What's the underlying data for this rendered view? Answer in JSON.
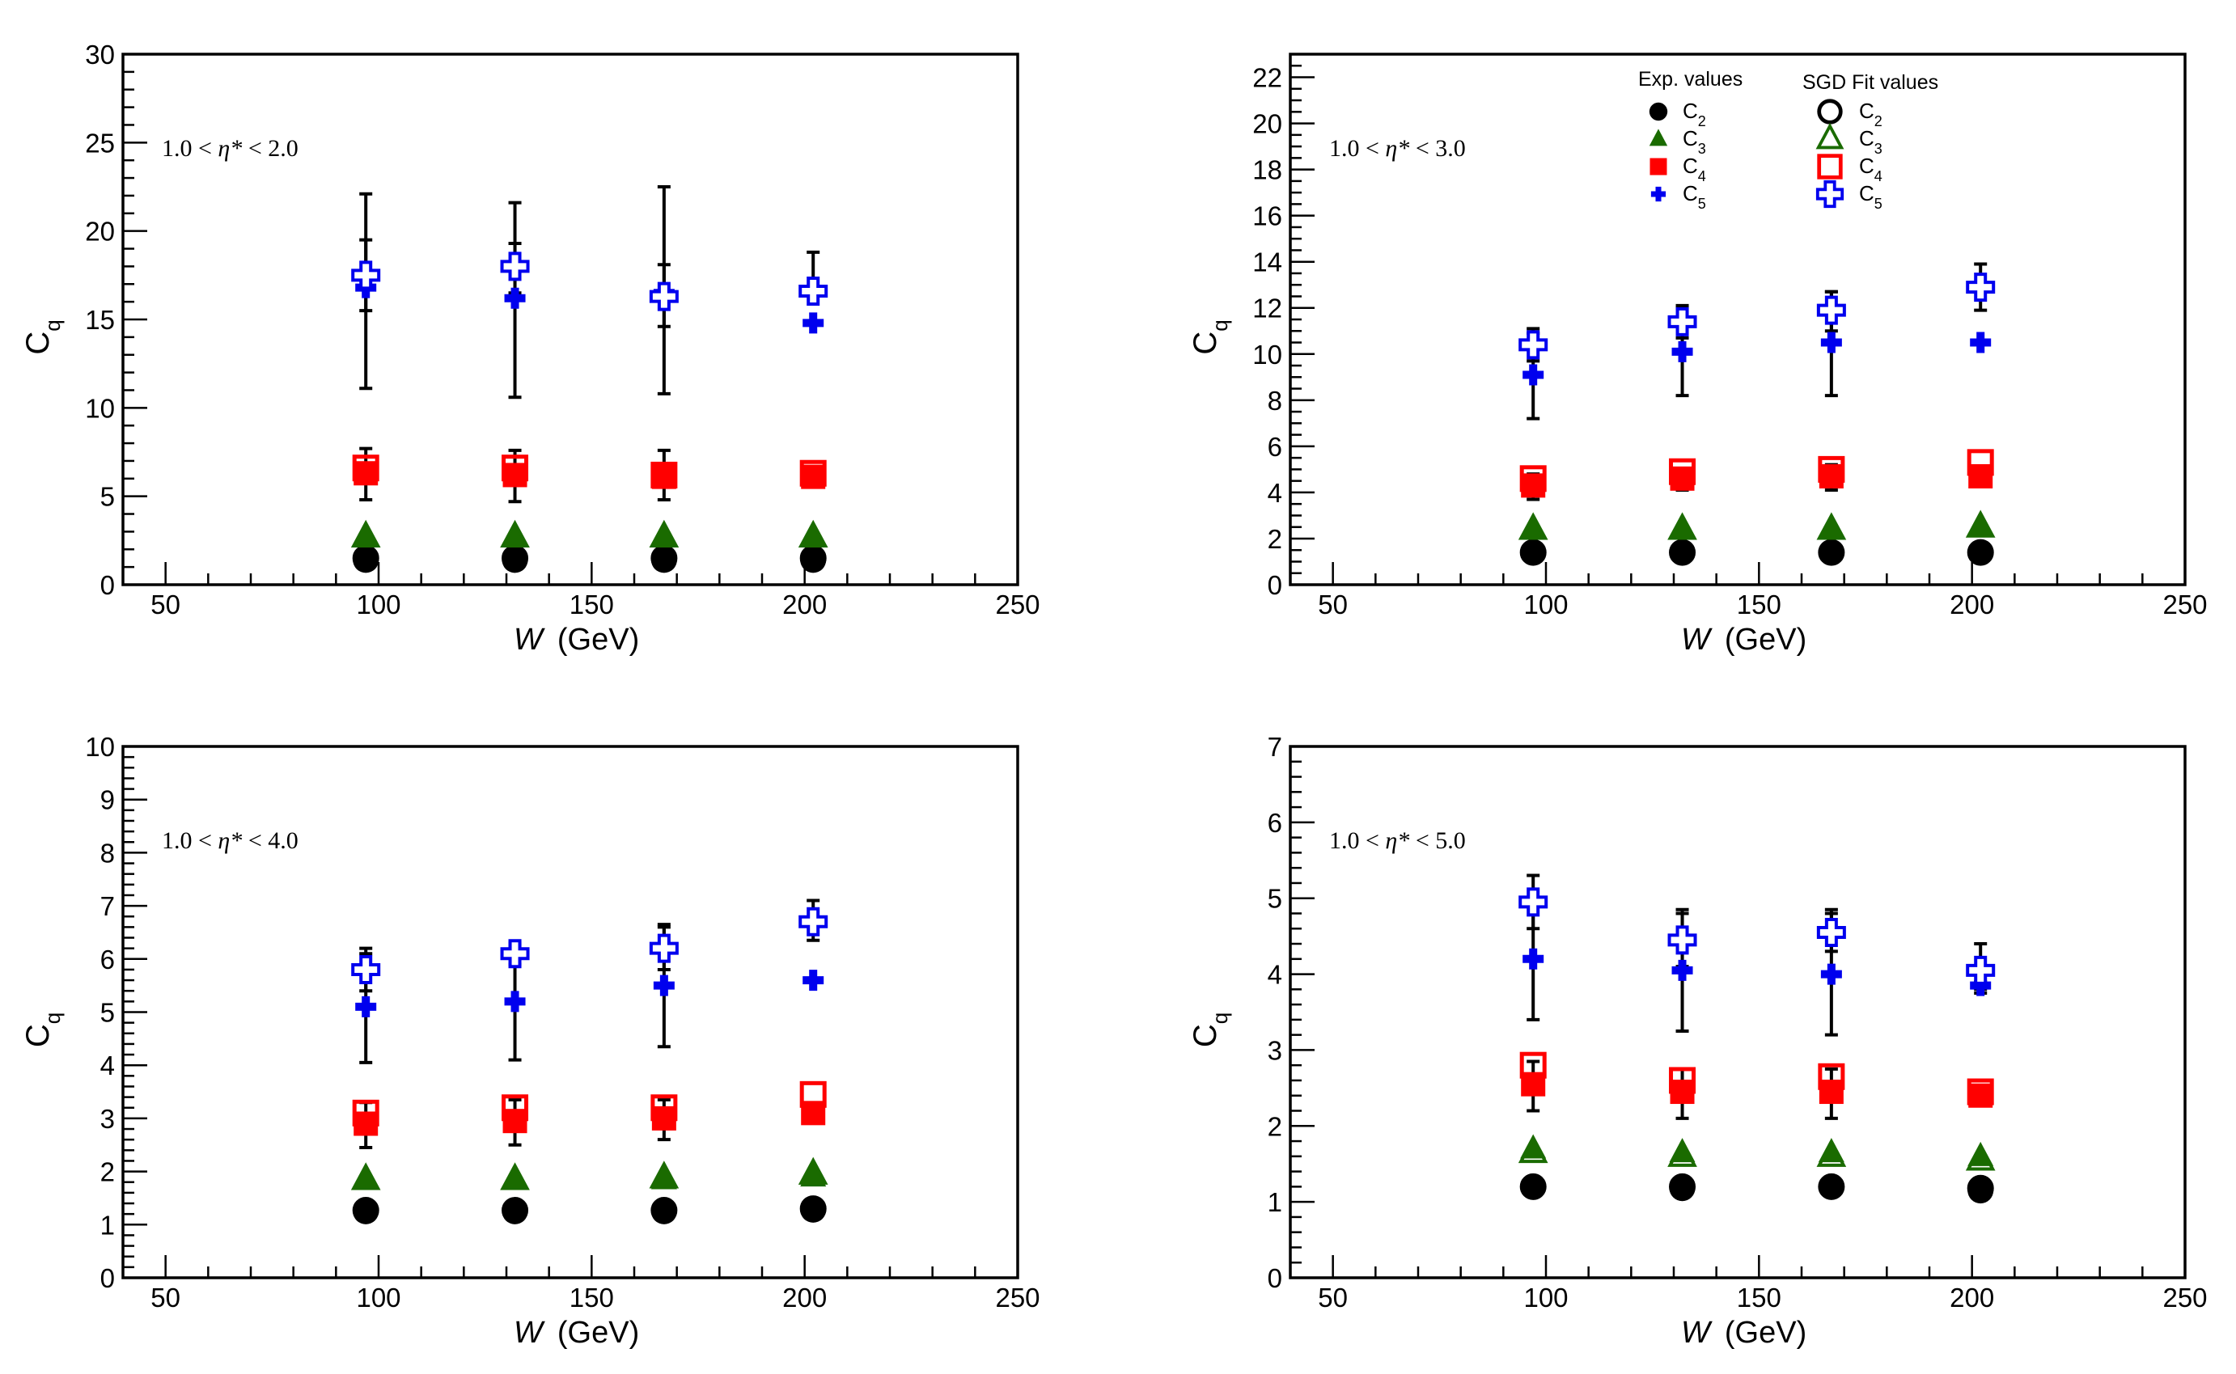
{
  "chart_data": [
    {
      "type": "scatter",
      "panel": "top-left",
      "range_label": "1.0 < η* < 2.0",
      "range_prefix": "1.0 < ",
      "range_var": "η*",
      "range_suffix": " < 2.0",
      "xlabel_var": "W",
      "xlabel_unit": "(GeV)",
      "ylabel_main": "C",
      "ylabel_sub": "q",
      "xlim": [
        40,
        250
      ],
      "ylim": [
        0,
        30
      ],
      "xticks": [
        50,
        100,
        150,
        200,
        250
      ],
      "xtick_labels": [
        "50",
        "100",
        "150",
        "200",
        "250"
      ],
      "yticks": [
        0,
        5,
        10,
        15,
        20,
        25,
        30
      ],
      "ytick_labels": [
        "0",
        "5",
        "10",
        "15",
        "20",
        "25",
        "30"
      ],
      "x_minor_step": 10,
      "y_minor_step": 1,
      "x": [
        97,
        132,
        167,
        202
      ],
      "series": [
        {
          "name": "C2 exp",
          "marker": "filled-circle",
          "color": "#000000",
          "values": [
            1.4,
            1.4,
            1.4,
            1.4
          ],
          "err": [
            [
              0.2,
              0.2
            ],
            [
              0.2,
              0.2
            ],
            [
              0.2,
              0.2
            ],
            [
              0.2,
              0.2
            ]
          ]
        },
        {
          "name": "C2 fit",
          "marker": "open-circle",
          "color": "#000000",
          "values": [
            1.5,
            1.5,
            1.5,
            1.5
          ]
        },
        {
          "name": "C3 exp",
          "marker": "filled-triangle",
          "color": "#1a6b00",
          "values": [
            2.7,
            2.7,
            2.7,
            2.7
          ]
        },
        {
          "name": "C3 fit",
          "marker": "open-triangle",
          "color": "#1a6b00",
          "values": [
            2.7,
            2.7,
            2.7,
            2.7
          ]
        },
        {
          "name": "C4 exp",
          "marker": "filled-square",
          "color": "#ff0000",
          "values": [
            6.3,
            6.2,
            6.1,
            6.1
          ],
          "err": [
            [
              1.5,
              1.4
            ],
            [
              1.5,
              1.4
            ],
            [
              1.3,
              1.5
            ],
            [
              0.5,
              0.5
            ]
          ]
        },
        {
          "name": "C4 fit",
          "marker": "open-square",
          "color": "#ff0000",
          "values": [
            6.6,
            6.6,
            6.2,
            6.3
          ]
        },
        {
          "name": "C5 exp",
          "marker": "filled-cross",
          "color": "#0000ee",
          "values": [
            16.8,
            16.2,
            16.5,
            14.8
          ],
          "err": [
            [
              5.7,
              5.3
            ],
            [
              5.6,
              5.4
            ],
            [
              5.7,
              6.0
            ],
            [
              0.1,
              0.1
            ]
          ]
        },
        {
          "name": "C5 fit",
          "marker": "open-cross",
          "color": "#0000ee",
          "values": [
            17.5,
            18.0,
            16.3,
            16.6
          ],
          "err": [
            [
              2.0,
              2.0
            ],
            [
              1.5,
              1.3
            ],
            [
              1.7,
              1.8
            ],
            [
              0.1,
              2.2
            ]
          ]
        }
      ]
    },
    {
      "type": "scatter",
      "panel": "top-right",
      "range_label": "1.0 < η* < 3.0",
      "range_prefix": "1.0 < ",
      "range_var": "η*",
      "range_suffix": " < 3.0",
      "xlabel_var": "W",
      "xlabel_unit": "(GeV)",
      "ylabel_main": "C",
      "ylabel_sub": "q",
      "xlim": [
        40,
        250
      ],
      "ylim": [
        0,
        23
      ],
      "xticks": [
        50,
        100,
        150,
        200,
        250
      ],
      "xtick_labels": [
        "50",
        "100",
        "150",
        "200",
        "250"
      ],
      "yticks": [
        0,
        2,
        4,
        6,
        8,
        10,
        12,
        14,
        16,
        18,
        20,
        22
      ],
      "ytick_labels": [
        "0",
        "2",
        "4",
        "6",
        "8",
        "10",
        "12",
        "14",
        "16",
        "18",
        "20",
        "22"
      ],
      "x_minor_step": 10,
      "y_minor_step": 0.5,
      "x": [
        97,
        132,
        167,
        202
      ],
      "series": [
        {
          "name": "C2 exp",
          "marker": "filled-circle",
          "color": "#000000",
          "values": [
            1.4,
            1.4,
            1.4,
            1.4
          ]
        },
        {
          "name": "C2 fit",
          "marker": "open-circle",
          "color": "#000000",
          "values": [
            1.4,
            1.4,
            1.4,
            1.4
          ]
        },
        {
          "name": "C3 exp",
          "marker": "filled-triangle",
          "color": "#1a6b00",
          "values": [
            2.4,
            2.4,
            2.4,
            2.5
          ]
        },
        {
          "name": "C3 fit",
          "marker": "open-triangle",
          "color": "#1a6b00",
          "values": [
            2.4,
            2.4,
            2.4,
            2.5
          ]
        },
        {
          "name": "C4 exp",
          "marker": "filled-square",
          "color": "#ff0000",
          "values": [
            4.3,
            4.6,
            4.7,
            4.7
          ],
          "err": [
            [
              0.6,
              0.5
            ],
            [
              0.5,
              0.4
            ],
            [
              0.6,
              0.5
            ],
            [
              0,
              0
            ]
          ]
        },
        {
          "name": "C4 fit",
          "marker": "open-square",
          "color": "#ff0000",
          "values": [
            4.6,
            4.9,
            5.0,
            5.3
          ]
        },
        {
          "name": "C5 exp",
          "marker": "filled-cross",
          "color": "#0000ee",
          "values": [
            9.1,
            10.1,
            10.5,
            10.5
          ],
          "err": [
            [
              1.9,
              1.8
            ],
            [
              1.9,
              1.9
            ],
            [
              2.3,
              2.2
            ],
            [
              0,
              0
            ]
          ]
        },
        {
          "name": "C5 fit",
          "marker": "open-cross",
          "color": "#0000ee",
          "values": [
            10.4,
            11.4,
            11.9,
            12.9
          ],
          "err": [
            [
              0.7,
              0.7
            ],
            [
              0.7,
              0.7
            ],
            [
              0.9,
              0.8
            ],
            [
              1.0,
              1.0
            ]
          ]
        }
      ],
      "legend": {
        "placement": "top",
        "exp_heading": "Exp. values",
        "fit_heading": "SGD Fit values",
        "entries": [
          {
            "main": "C",
            "sub": "2"
          },
          {
            "main": "C",
            "sub": "3"
          },
          {
            "main": "C",
            "sub": "4"
          },
          {
            "main": "C",
            "sub": "5"
          }
        ]
      }
    },
    {
      "type": "scatter",
      "panel": "bottom-left",
      "range_label": "1.0 < η* < 4.0",
      "range_prefix": "1.0 < ",
      "range_var": "η*",
      "range_suffix": " < 4.0",
      "xlabel_var": "W",
      "xlabel_unit": "(GeV)",
      "ylabel_main": "C",
      "ylabel_sub": "q",
      "xlim": [
        40,
        250
      ],
      "ylim": [
        0,
        10
      ],
      "xticks": [
        50,
        100,
        150,
        200,
        250
      ],
      "xtick_labels": [
        "50",
        "100",
        "150",
        "200",
        "250"
      ],
      "yticks": [
        0,
        1,
        2,
        3,
        4,
        5,
        6,
        7,
        8,
        9,
        10
      ],
      "ytick_labels": [
        "0",
        "1",
        "2",
        "3",
        "4",
        "5",
        "6",
        "7",
        "8",
        "9",
        "10"
      ],
      "x_minor_step": 10,
      "y_minor_step": 0.2,
      "x": [
        97,
        132,
        167,
        202
      ],
      "series": [
        {
          "name": "C2 exp",
          "marker": "filled-circle",
          "color": "#000000",
          "values": [
            1.25,
            1.25,
            1.25,
            1.28
          ]
        },
        {
          "name": "C2 fit",
          "marker": "open-circle",
          "color": "#000000",
          "values": [
            1.27,
            1.27,
            1.27,
            1.3
          ]
        },
        {
          "name": "C3 exp",
          "marker": "filled-triangle",
          "color": "#1a6b00",
          "values": [
            1.85,
            1.85,
            1.85,
            1.9
          ]
        },
        {
          "name": "C3 fit",
          "marker": "open-triangle",
          "color": "#1a6b00",
          "values": [
            1.85,
            1.85,
            1.88,
            1.95
          ]
        },
        {
          "name": "C4 exp",
          "marker": "filled-square",
          "color": "#ff0000",
          "values": [
            2.9,
            2.95,
            3.0,
            3.1
          ],
          "err": [
            [
              0.45,
              0.4
            ],
            [
              0.45,
              0.4
            ],
            [
              0.4,
              0.35
            ],
            [
              0,
              0
            ]
          ]
        },
        {
          "name": "C4 fit",
          "marker": "open-square",
          "color": "#ff0000",
          "values": [
            3.1,
            3.2,
            3.2,
            3.45
          ]
        },
        {
          "name": "C5 exp",
          "marker": "filled-cross",
          "color": "#0000ee",
          "values": [
            5.1,
            5.2,
            5.5,
            5.6
          ],
          "err": [
            [
              1.05,
              1.0
            ],
            [
              1.1,
              1.05
            ],
            [
              1.15,
              1.1
            ],
            [
              0,
              0
            ]
          ]
        },
        {
          "name": "C5 fit",
          "marker": "open-cross",
          "color": "#0000ee",
          "values": [
            5.8,
            6.1,
            6.2,
            6.7
          ],
          "err": [
            [
              0.4,
              0.4
            ],
            [
              0.2,
              0.2
            ],
            [
              0.4,
              0.45
            ],
            [
              0.35,
              0.4
            ]
          ]
        }
      ]
    },
    {
      "type": "scatter",
      "panel": "bottom-right",
      "range_label": "1.0 < η* < 5.0",
      "range_prefix": "1.0 < ",
      "range_var": "η*",
      "range_suffix": " < 5.0",
      "xlabel_var": "W",
      "xlabel_unit": "(GeV)",
      "ylabel_main": "C",
      "ylabel_sub": "q",
      "xlim": [
        40,
        250
      ],
      "ylim": [
        0,
        7
      ],
      "xticks": [
        50,
        100,
        150,
        200,
        250
      ],
      "xtick_labels": [
        "50",
        "100",
        "150",
        "200",
        "250"
      ],
      "yticks": [
        0,
        1,
        2,
        3,
        4,
        5,
        6,
        7
      ],
      "ytick_labels": [
        "0",
        "1",
        "2",
        "3",
        "4",
        "5",
        "6",
        "7"
      ],
      "x_minor_step": 10,
      "y_minor_step": 0.2,
      "x": [
        97,
        132,
        167,
        202
      ],
      "series": [
        {
          "name": "C2 exp",
          "marker": "filled-circle",
          "color": "#000000",
          "values": [
            1.2,
            1.18,
            1.2,
            1.15
          ]
        },
        {
          "name": "C2 fit",
          "marker": "open-circle",
          "color": "#000000",
          "values": [
            1.2,
            1.2,
            1.2,
            1.18
          ]
        },
        {
          "name": "C3 exp",
          "marker": "filled-triangle",
          "color": "#1a6b00",
          "values": [
            1.7,
            1.65,
            1.65,
            1.6
          ]
        },
        {
          "name": "C3 fit",
          "marker": "open-triangle",
          "color": "#1a6b00",
          "values": [
            1.65,
            1.6,
            1.6,
            1.55
          ]
        },
        {
          "name": "C4 exp",
          "marker": "filled-square",
          "color": "#ff0000",
          "values": [
            2.55,
            2.45,
            2.45,
            2.4
          ],
          "err": [
            [
              0.35,
              0.3
            ],
            [
              0.35,
              0.3
            ],
            [
              0.35,
              0.3
            ],
            [
              0,
              0
            ]
          ]
        },
        {
          "name": "C4 fit",
          "marker": "open-square",
          "color": "#ff0000",
          "values": [
            2.8,
            2.6,
            2.65,
            2.45
          ]
        },
        {
          "name": "C5 exp",
          "marker": "filled-cross",
          "color": "#0000ee",
          "values": [
            4.2,
            4.05,
            4.0,
            3.85
          ],
          "err": [
            [
              0.8,
              0.8
            ],
            [
              0.8,
              0.75
            ],
            [
              0.8,
              0.8
            ],
            [
              0.05,
              0.05
            ]
          ]
        },
        {
          "name": "C5 fit",
          "marker": "open-cross",
          "color": "#0000ee",
          "values": [
            4.95,
            4.45,
            4.55,
            4.05
          ],
          "err": [
            [
              0.35,
              0.35
            ],
            [
              0.35,
              0.4
            ],
            [
              0.25,
              0.3
            ],
            [
              0.3,
              0.35
            ]
          ]
        }
      ]
    }
  ]
}
